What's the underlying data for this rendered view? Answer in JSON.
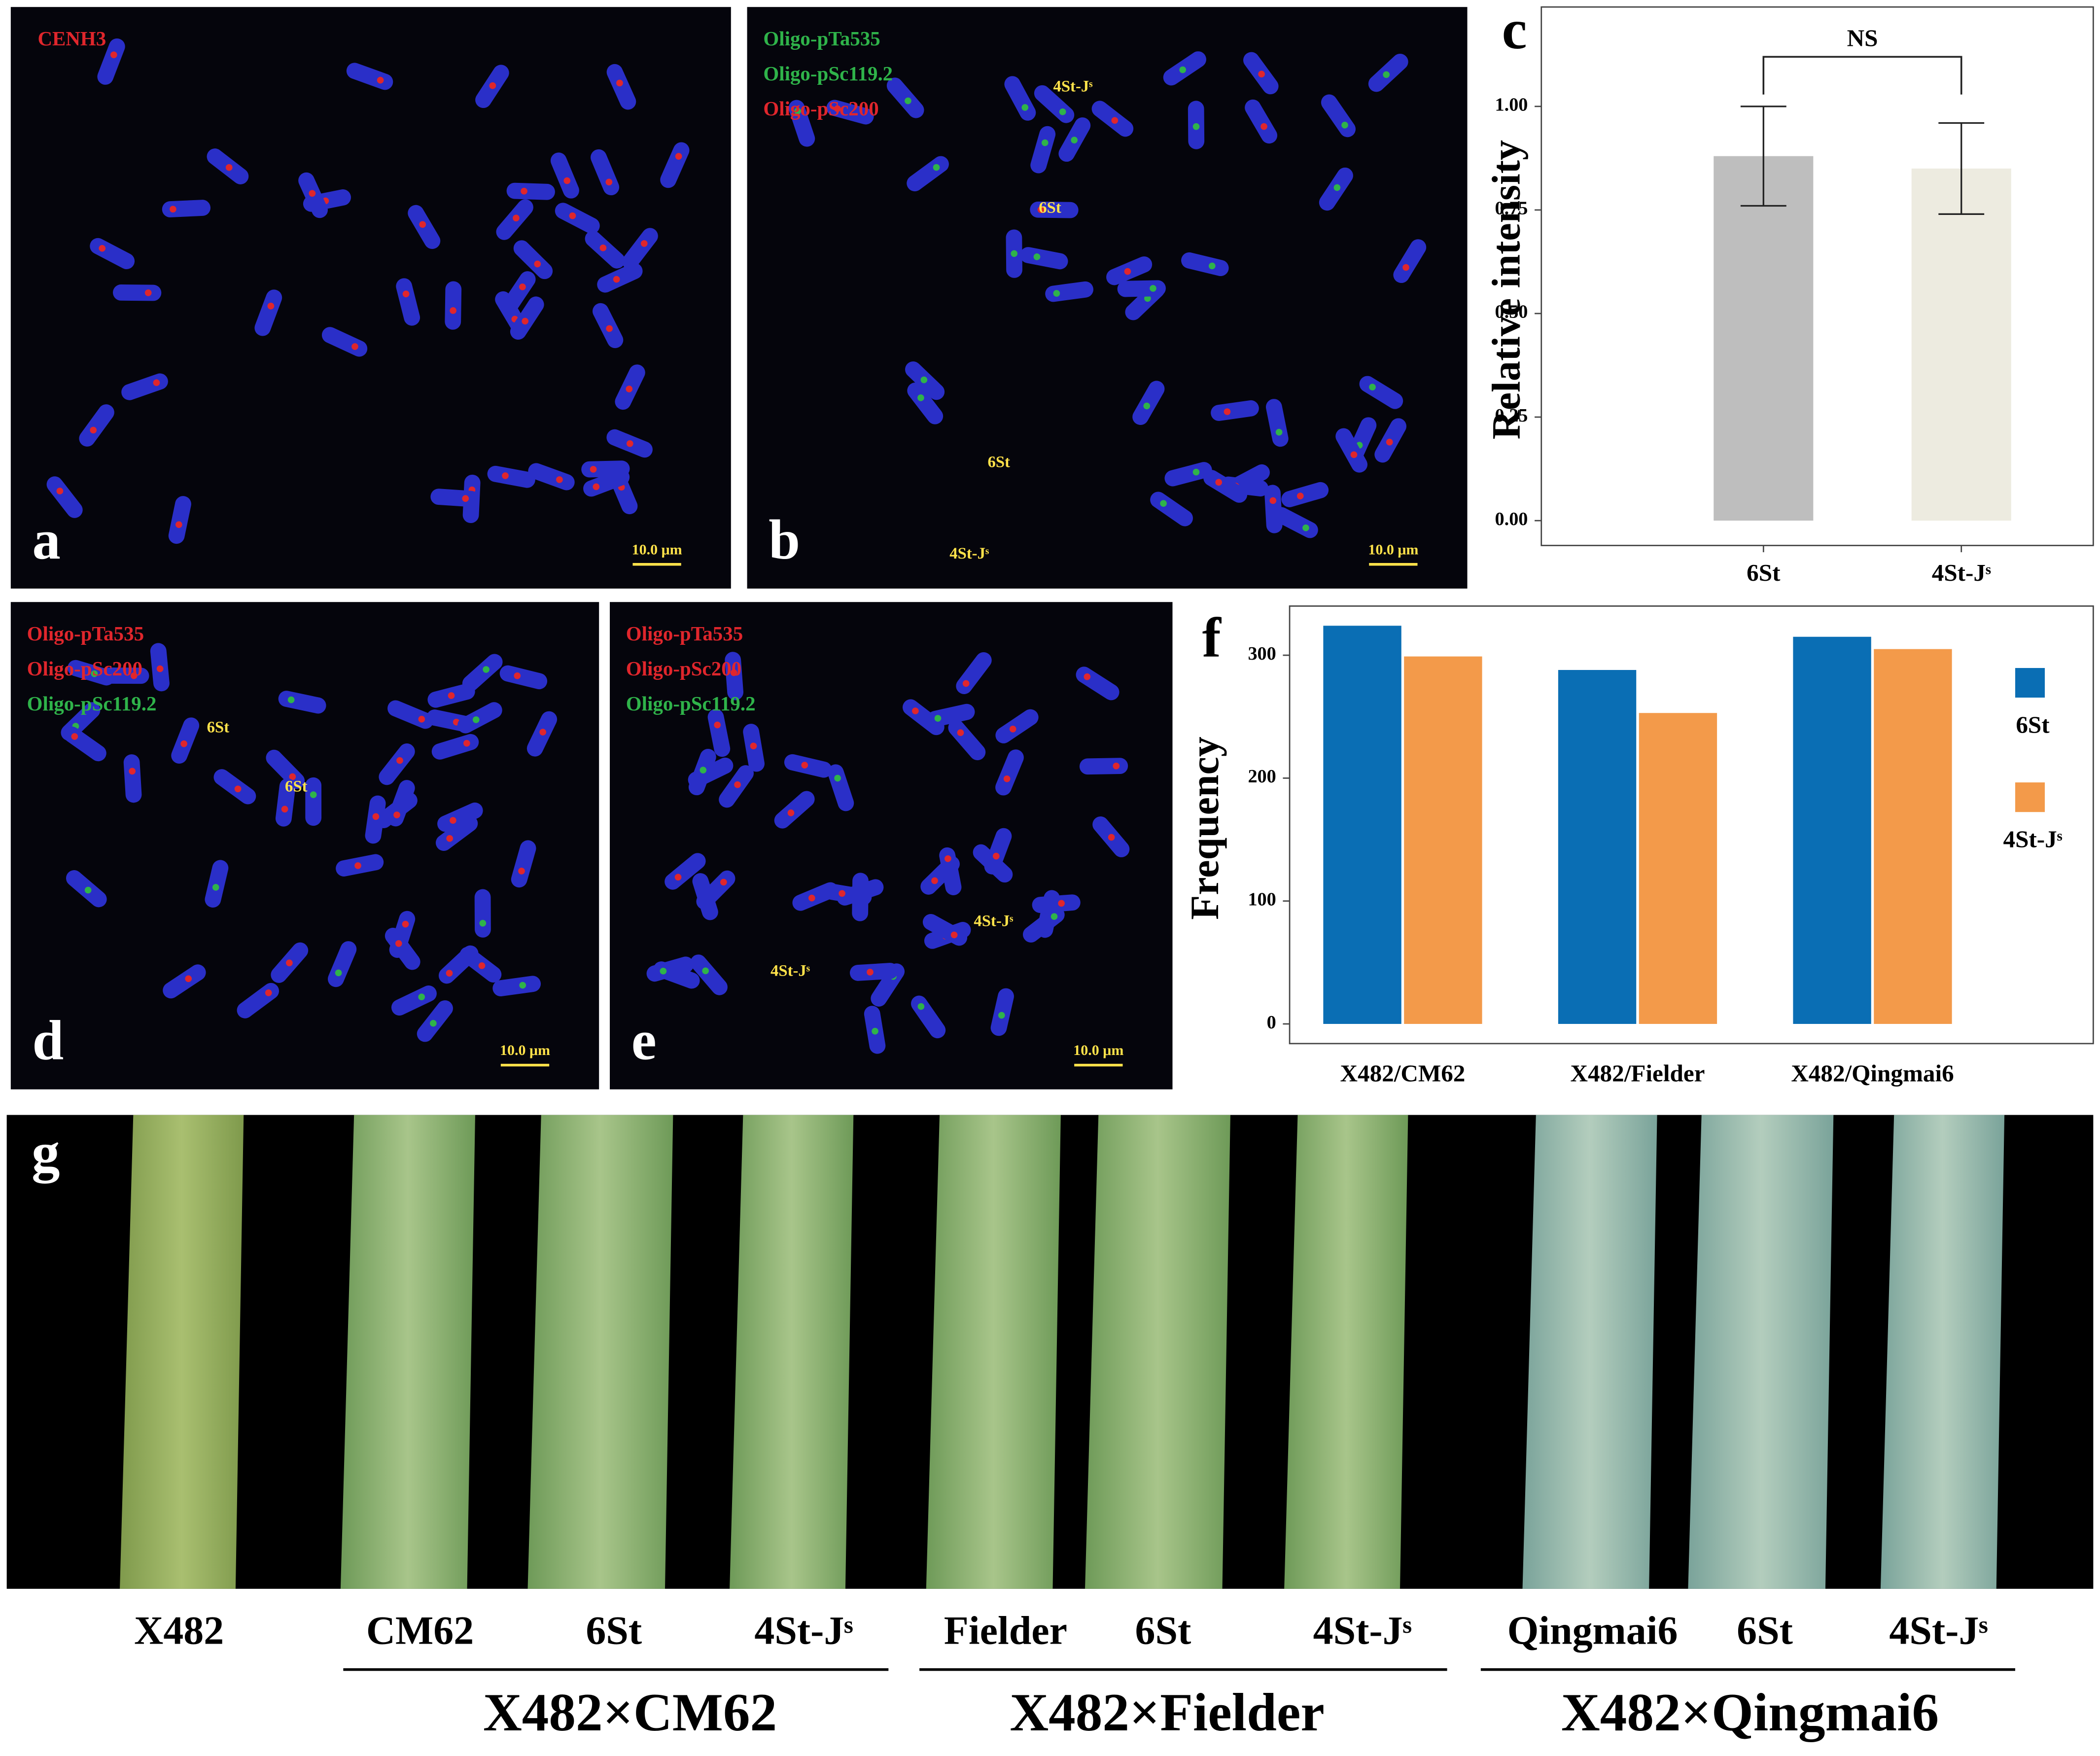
{
  "chart_data": [
    {
      "type": "bar",
      "label": "c",
      "ylabel": "Relative intensity",
      "categories": [
        "6St",
        "4St-Jˢ"
      ],
      "values": [
        0.88,
        0.85
      ],
      "errors": [
        0.12,
        0.11
      ],
      "colors": [
        "#bebebe",
        "#edebe0"
      ],
      "annotation": "NS",
      "ylim": [
        -0.06,
        1.24
      ],
      "yticks": [
        {
          "value": 0,
          "label": "0.00"
        },
        {
          "value": 0.25,
          "label": "0.25"
        },
        {
          "value": 0.5,
          "label": "0.50"
        },
        {
          "value": 0.75,
          "label": "0.75"
        },
        {
          "value": 1,
          "label": "1.00"
        }
      ]
    },
    {
      "type": "grouped-bar",
      "label": "f",
      "ylabel": "Frequency",
      "categories": [
        "X482/CM62",
        "X482/Fielder",
        "X482/Qingmai6"
      ],
      "series": [
        {
          "name": "6St",
          "color": "#0a6eb4",
          "values": [
            324,
            288,
            315
          ]
        },
        {
          "name": "4St-Jˢ",
          "color": "#f39a4a",
          "values": [
            299,
            253,
            305
          ]
        }
      ],
      "ylim": [
        -16,
        340
      ],
      "yticks": [
        0,
        100,
        200,
        300
      ],
      "legend": "right"
    }
  ],
  "panels": [
    {
      "label": "a",
      "scale_bar": "10.0 μm",
      "probes": [
        {
          "text": "CENH3",
          "color": "#e0262c"
        }
      ],
      "annotations": []
    },
    {
      "label": "b",
      "scale_bar": "10.0 μm",
      "probes": [
        {
          "text": "Oligo-pTa535",
          "color": "#2fb34a"
        },
        {
          "text": "Oligo-pSc119.2",
          "color": "#2fb34a"
        },
        {
          "text": "Oligo-pSc200",
          "color": "#e0262c"
        }
      ],
      "annotations": [
        "4St-Jˢ",
        "6St",
        "6St",
        "4St-Jˢ"
      ]
    },
    {
      "label": "d",
      "scale_bar": "10.0 μm",
      "probes": [
        {
          "text": "Oligo-pTa535",
          "color": "#e0262c"
        },
        {
          "text": "Oligo-pSc200",
          "color": "#e0262c"
        },
        {
          "text": "Oligo-pSc119.2",
          "color": "#2fb34a"
        }
      ],
      "annotations": [
        "6St",
        "6St"
      ]
    },
    {
      "label": "e",
      "scale_bar": "10.0 μm",
      "probes": [
        {
          "text": "Oligo-pTa535",
          "color": "#e0262c"
        },
        {
          "text": "Oligo-pSc200",
          "color": "#e0262c"
        },
        {
          "text": "Oligo-pSc119.2",
          "color": "#2fb34a"
        }
      ],
      "annotations": [
        "4St-Jˢ",
        "4St-Jˢ"
      ]
    }
  ],
  "leaves": {
    "label": "g",
    "names": [
      "X482",
      "CM62",
      "6St",
      "4St-Jˢ",
      "Fielder",
      "6St",
      "4St-Jˢ",
      "Qingmai6",
      "6St",
      "4St-Jˢ"
    ],
    "groups": [
      "X482×CM62",
      "X482×Fielder",
      "X482×Qingmai6"
    ]
  }
}
